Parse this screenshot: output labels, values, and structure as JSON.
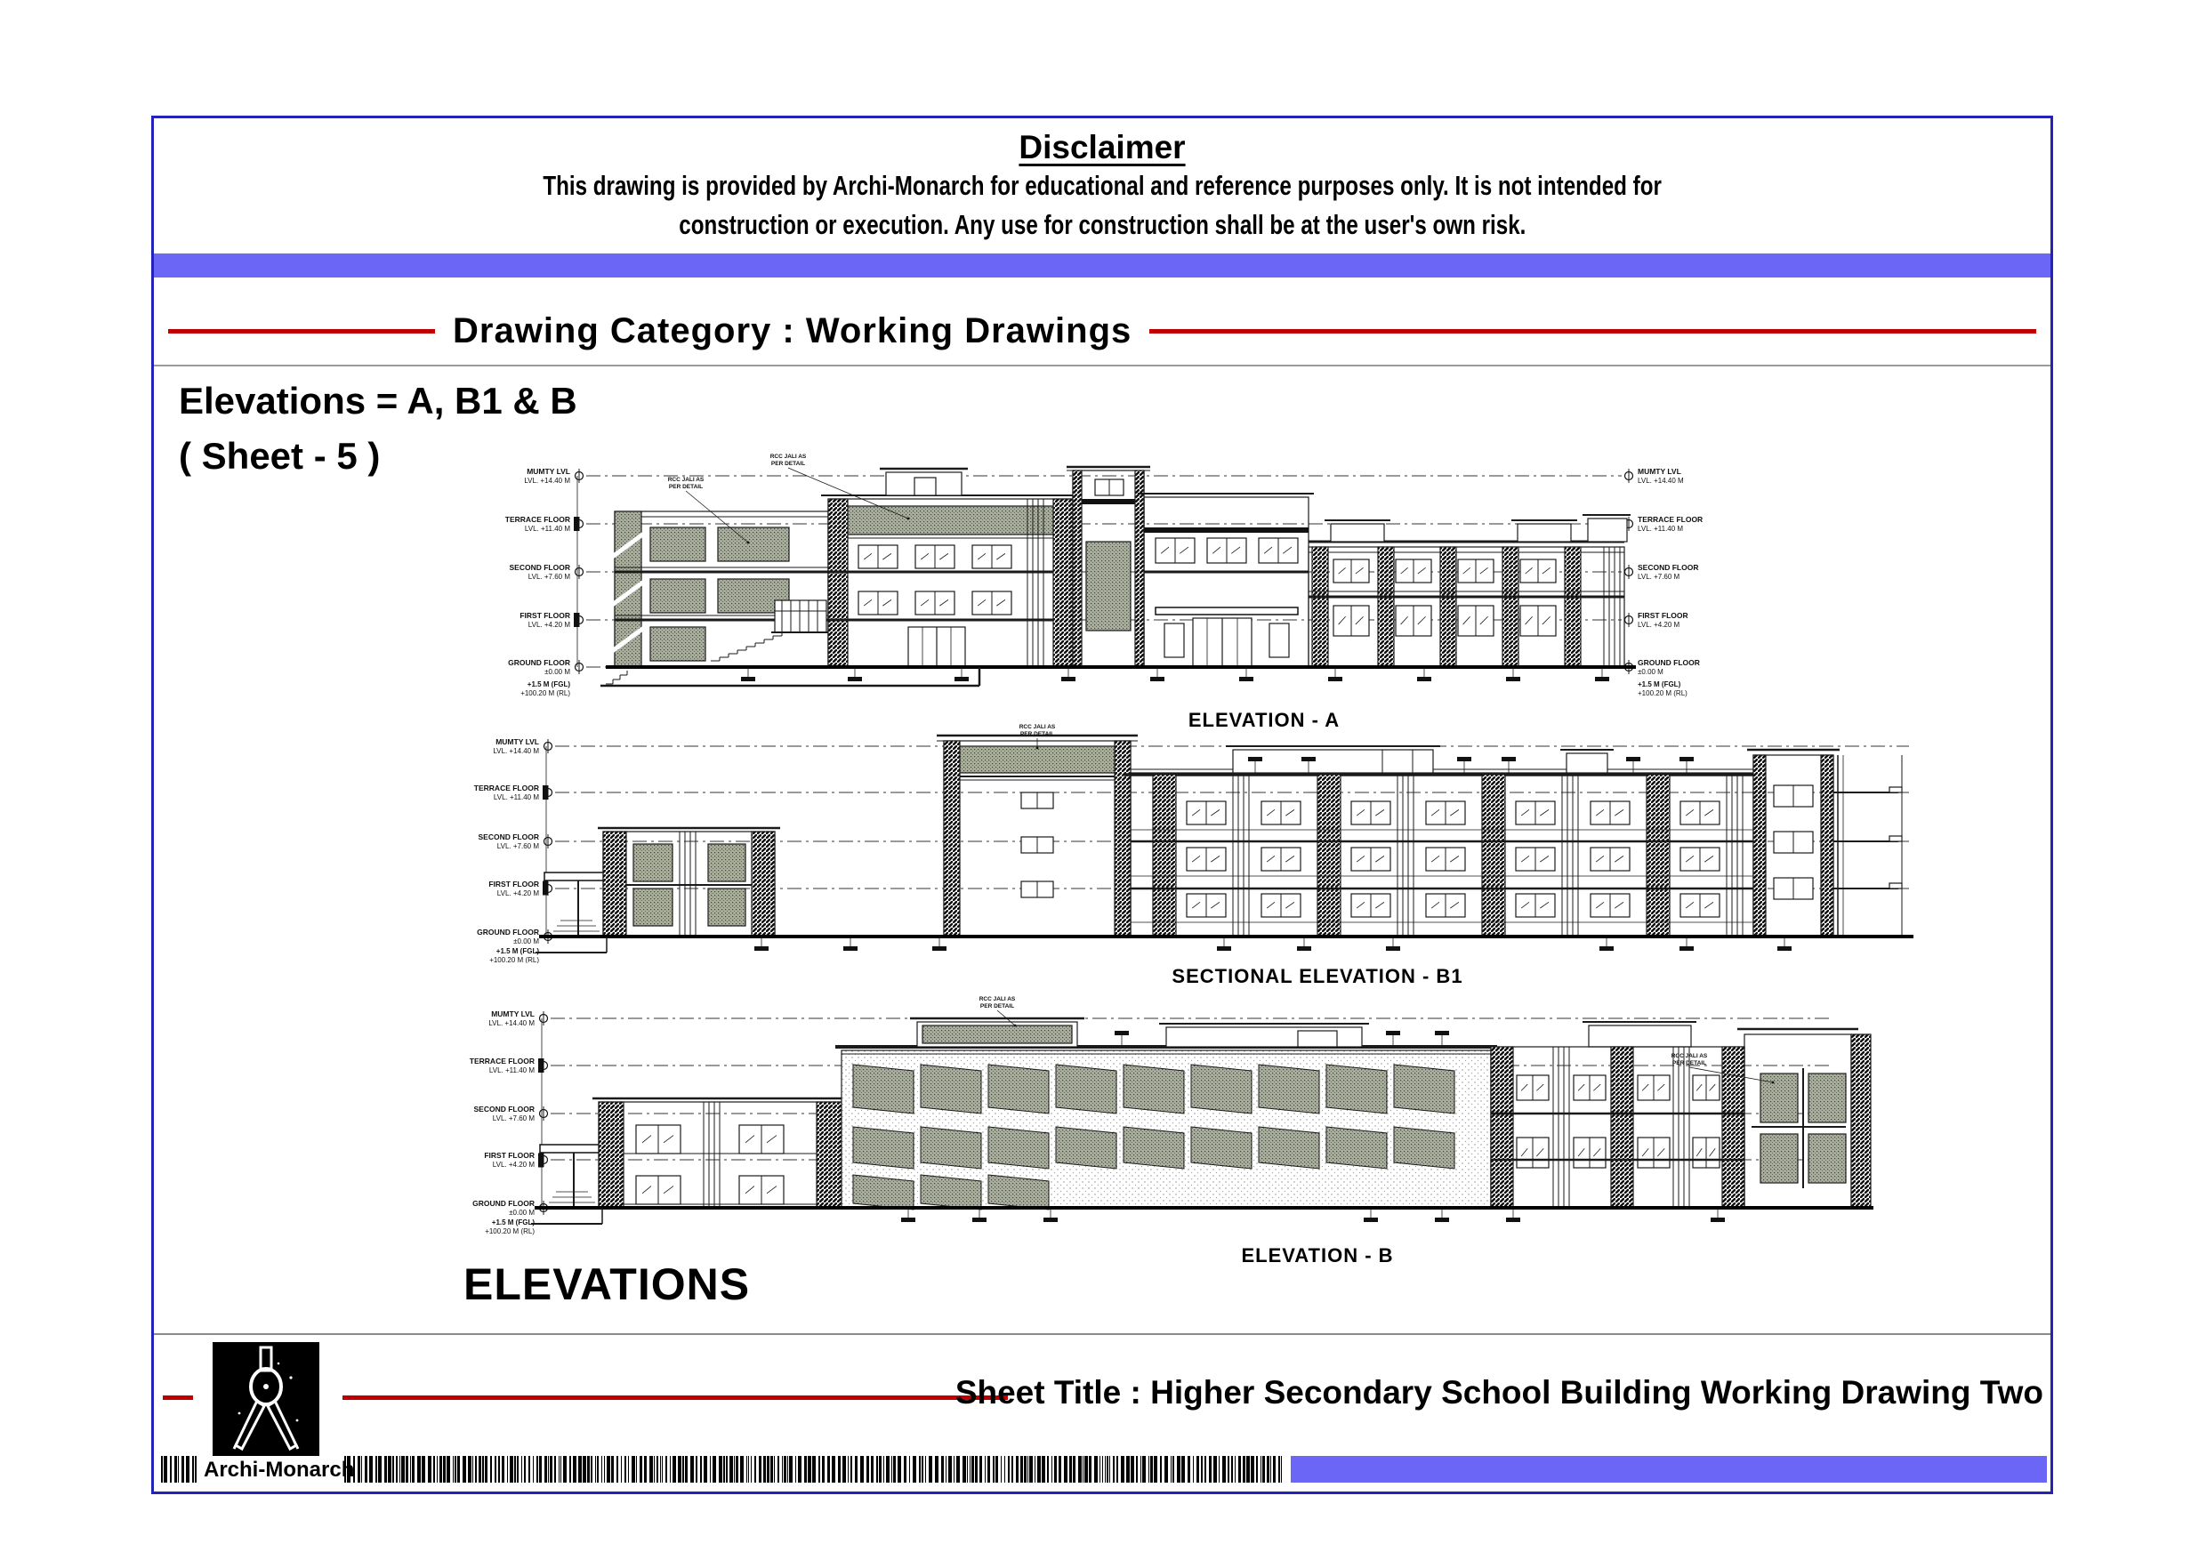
{
  "colors": {
    "accent_blue": "#6b66f5",
    "border_blue": "#2323b8",
    "rule_red": "#c00000",
    "stipple_panel": "#a9ae9b",
    "line_ink": "#1a1a1a"
  },
  "header": {
    "disclaimer_title": "Disclaimer",
    "disclaimer_line1": "This drawing is provided by Archi-Monarch for educational and reference purposes only. It is not intended for",
    "disclaimer_line2": "construction or execution. Any use for construction shall be at the user's own risk.",
    "category_label": "Drawing Category : Working Drawings"
  },
  "sheet": {
    "heading_line1": "Elevations = A, B1 & B",
    "heading_line2": "( Sheet - 5 )",
    "section_label": "ELEVATIONS"
  },
  "drawings": {
    "annotation": "RCC JALI AS PER DETAIL",
    "levels": [
      {
        "name": "MUMTY LVL",
        "lvl": "LVL. +14.40 M"
      },
      {
        "name": "TERRACE FLOOR",
        "lvl": "LVL. +11.40 M"
      },
      {
        "name": "SECOND FLOOR",
        "lvl": "LVL. +7.60 M"
      },
      {
        "name": "FIRST FLOOR",
        "lvl": "LVL. +4.20 M"
      },
      {
        "name": "GROUND FLOOR",
        "lvl": "±0.00 M"
      },
      {
        "name": "+1.5 M (FGL)",
        "lvl": "+100.20 M (RL)"
      }
    ],
    "titles": {
      "a": "ELEVATION - A",
      "b1": "SECTIONAL ELEVATION - B1",
      "b": "ELEVATION - B"
    }
  },
  "footer": {
    "logo_text": "Archi-Monarch",
    "sheet_title": "Sheet Title : Higher Secondary School Building Working Drawing Two"
  }
}
